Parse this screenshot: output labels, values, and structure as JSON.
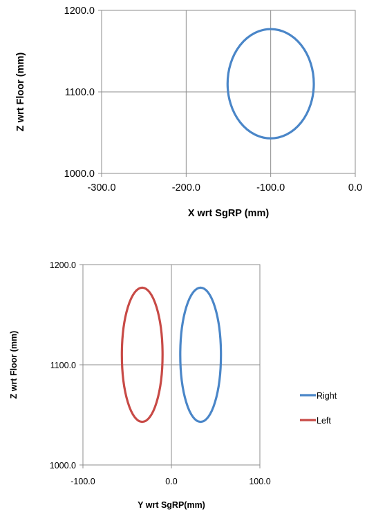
{
  "chart_data": [
    {
      "type": "line",
      "title": "",
      "xlabel": "X wrt SgRP (mm)",
      "ylabel": "Z wrt Floor (mm)",
      "xlim": [
        -300,
        0
      ],
      "ylim": [
        1000,
        1200
      ],
      "xticks": [
        -300,
        -200,
        -100,
        0
      ],
      "yticks": [
        1000,
        1100,
        1200
      ],
      "xtick_labels": [
        "-300.0",
        "-200.0",
        "-100.0",
        "0.0"
      ],
      "ytick_labels": [
        "1000.0",
        "1100.0",
        "1200.0"
      ],
      "grid": true,
      "legend": "none",
      "series": [
        {
          "color": "#4a86c8",
          "shape": "ellipse",
          "center": [
            -100,
            1110
          ],
          "radius": [
            51,
            67
          ]
        }
      ]
    },
    {
      "type": "line",
      "title": "",
      "xlabel": "Y wrt SgRP(mm)",
      "ylabel": "Z wrt Floor (mm)",
      "xlim": [
        -100,
        100
      ],
      "ylim": [
        1000,
        1200
      ],
      "xticks": [
        -100,
        0,
        100
      ],
      "yticks": [
        1000,
        1100,
        1200
      ],
      "xtick_labels": [
        "-100.0",
        "0.0",
        "100.0"
      ],
      "ytick_labels": [
        "1000.0",
        "1100.0",
        "1200.0"
      ],
      "grid": true,
      "legend": "right",
      "series": [
        {
          "name": "Right",
          "color": "#4a86c8",
          "shape": "ellipse",
          "center": [
            33,
            1110
          ],
          "radius": [
            23,
            67
          ]
        },
        {
          "name": "Left",
          "color": "#c84a46",
          "shape": "ellipse",
          "center": [
            -33,
            1110
          ],
          "radius": [
            23,
            67
          ]
        }
      ]
    }
  ]
}
